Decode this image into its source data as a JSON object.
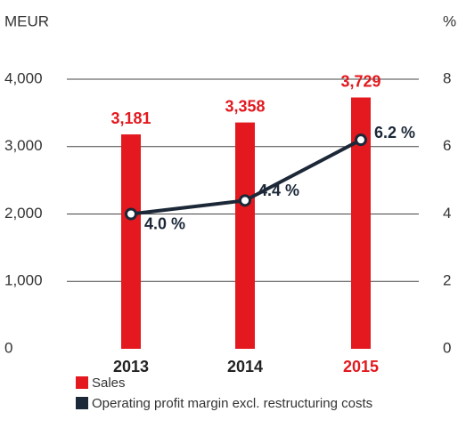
{
  "chart_data": {
    "type": "bar_line",
    "y_label": "MEUR",
    "y2_label": "%",
    "categories": [
      "2013",
      "2014",
      "2015"
    ],
    "category_colors": [
      "#222222",
      "#222222",
      "#e3191f"
    ],
    "series": [
      {
        "name": "Sales",
        "type": "bar",
        "color": "#e3191f",
        "values": [
          3181,
          3358,
          3729
        ],
        "value_labels": [
          "3,181",
          "3,358",
          "3,729"
        ]
      },
      {
        "name": "Operating profit margin excl. restructuring costs",
        "type": "line",
        "axis": "y2",
        "color": "#1c2838",
        "values": [
          4.0,
          4.4,
          6.2
        ],
        "value_labels": [
          "4.0 %",
          "4.4 %",
          "6.2 %"
        ]
      }
    ],
    "ylim": [
      0,
      4000
    ],
    "yticks": [
      {
        "value": 0,
        "label": "0"
      },
      {
        "value": 1000,
        "label": "1,000"
      },
      {
        "value": 2000,
        "label": "2,000"
      },
      {
        "value": 3000,
        "label": "3,000"
      },
      {
        "value": 4000,
        "label": "4,000"
      }
    ],
    "y2lim": [
      0,
      8
    ],
    "y2ticks": [
      0,
      2,
      4,
      6,
      8
    ],
    "grid": true
  }
}
